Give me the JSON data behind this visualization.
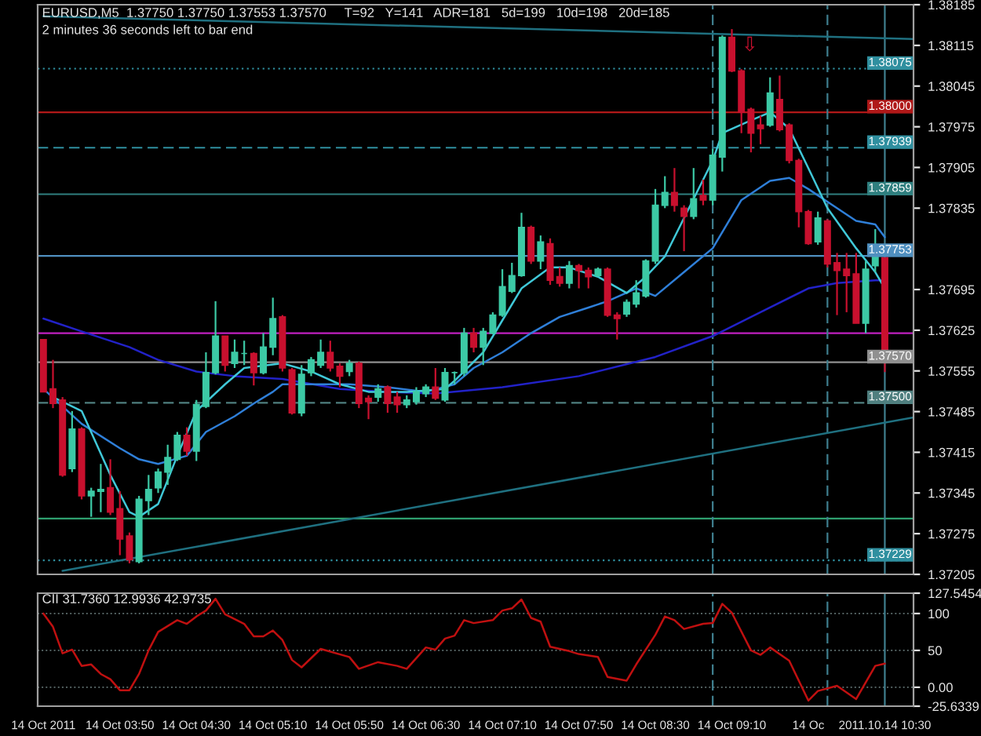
{
  "chart_data": [
    {
      "type": "candlestick",
      "title": "EURUSD,M5  1.37750 1.37750 1.37553 1.37570",
      "annotations": [
        "2 minutes 36 seconds left to bar end",
        "T=92   Y=141   ADR=181   5d=199   10d=198   20d=185",
        "⇩"
      ],
      "x": [
        "2011-10-14T03:10",
        "2011-10-14T03:15",
        "2011-10-14T03:20",
        "2011-10-14T03:25",
        "2011-10-14T03:30",
        "2011-10-14T03:35",
        "2011-10-14T03:40",
        "2011-10-14T03:45",
        "2011-10-14T03:50",
        "2011-10-14T03:55",
        "2011-10-14T04:00",
        "2011-10-14T04:05",
        "2011-10-14T04:10",
        "2011-10-14T04:15",
        "2011-10-14T04:20",
        "2011-10-14T04:25",
        "2011-10-14T04:30",
        "2011-10-14T04:35",
        "2011-10-14T04:40",
        "2011-10-14T04:45",
        "2011-10-14T04:50",
        "2011-10-14T04:55",
        "2011-10-14T05:00",
        "2011-10-14T05:05",
        "2011-10-14T05:10",
        "2011-10-14T05:15",
        "2011-10-14T05:20",
        "2011-10-14T05:25",
        "2011-10-14T05:30",
        "2011-10-14T05:35",
        "2011-10-14T05:40",
        "2011-10-14T05:45",
        "2011-10-14T05:50",
        "2011-10-14T05:55",
        "2011-10-14T06:00",
        "2011-10-14T06:05",
        "2011-10-14T06:10",
        "2011-10-14T06:15",
        "2011-10-14T06:20",
        "2011-10-14T06:25",
        "2011-10-14T06:30",
        "2011-10-14T06:35",
        "2011-10-14T06:40",
        "2011-10-14T06:45",
        "2011-10-14T06:50",
        "2011-10-14T06:55",
        "2011-10-14T07:00",
        "2011-10-14T07:05",
        "2011-10-14T07:10",
        "2011-10-14T07:15",
        "2011-10-14T07:20",
        "2011-10-14T07:25",
        "2011-10-14T07:30",
        "2011-10-14T07:35",
        "2011-10-14T07:40",
        "2011-10-14T07:45",
        "2011-10-14T07:50",
        "2011-10-14T07:55",
        "2011-10-14T08:00",
        "2011-10-14T08:05",
        "2011-10-14T08:10",
        "2011-10-14T08:15",
        "2011-10-14T08:20",
        "2011-10-14T08:25",
        "2011-10-14T08:30",
        "2011-10-14T08:35",
        "2011-10-14T08:40",
        "2011-10-14T08:45",
        "2011-10-14T08:50",
        "2011-10-14T08:55",
        "2011-10-14T09:00",
        "2011-10-14T09:05",
        "2011-10-14T09:10",
        "2011-10-14T09:15",
        "2011-10-14T09:20",
        "2011-10-14T09:25",
        "2011-10-14T09:30",
        "2011-10-14T09:35",
        "2011-10-14T09:40",
        "2011-10-14T09:45",
        "2011-10-14T09:50",
        "2011-10-14T09:55",
        "2011-10-14T10:00",
        "2011-10-14T10:05",
        "2011-10-14T10:10",
        "2011-10-14T10:15",
        "2011-10-14T10:20",
        "2011-10-14T10:25",
        "2011-10-14T10:30"
      ],
      "ohlc": [
        [
          1.37609,
          1.37609,
          1.37519,
          1.37519
        ],
        [
          1.37524,
          1.37574,
          1.37491,
          1.37499
        ],
        [
          1.37505,
          1.3751,
          1.37373,
          1.37376
        ],
        [
          1.37387,
          1.37486,
          1.37381,
          1.37455
        ],
        [
          1.37455,
          1.37458,
          1.37334,
          1.3734
        ],
        [
          1.3734,
          1.37354,
          1.37304,
          1.37348
        ],
        [
          1.37348,
          1.37395,
          1.37312,
          1.37351
        ],
        [
          1.37354,
          1.37403,
          1.37307,
          1.37312
        ],
        [
          1.37318,
          1.37348,
          1.37238,
          1.37266
        ],
        [
          1.37271,
          1.37277,
          1.37224,
          1.3723
        ],
        [
          1.37227,
          1.3734,
          1.37224,
          1.37334
        ],
        [
          1.37332,
          1.37376,
          1.37307,
          1.37351
        ],
        [
          1.37354,
          1.37387,
          1.37345,
          1.37381
        ],
        [
          1.37381,
          1.37428,
          1.37359,
          1.37406
        ],
        [
          1.37403,
          1.3745,
          1.374,
          1.37444
        ],
        [
          1.37444,
          1.37458,
          1.37409,
          1.37417
        ],
        [
          1.37417,
          1.37505,
          1.374,
          1.37497
        ],
        [
          1.37494,
          1.37587,
          1.37491,
          1.37552
        ],
        [
          1.37552,
          1.37675,
          1.37549,
          1.37615
        ],
        [
          1.37615,
          1.37615,
          1.37554,
          1.37565
        ],
        [
          1.37568,
          1.37609,
          1.3756,
          1.37587
        ],
        [
          1.37585,
          1.37607,
          1.37565,
          1.37585
        ],
        [
          1.37585,
          1.37587,
          1.3753,
          1.37552
        ],
        [
          1.37552,
          1.3762,
          1.37549,
          1.37596
        ],
        [
          1.37596,
          1.37681,
          1.37582,
          1.37645
        ],
        [
          1.37648,
          1.37651,
          1.37554,
          1.3756
        ],
        [
          1.37557,
          1.3756,
          1.3748,
          1.37483
        ],
        [
          1.37483,
          1.37565,
          1.37477,
          1.37549
        ],
        [
          1.37552,
          1.37579,
          1.37546,
          1.37574
        ],
        [
          1.37565,
          1.37609,
          1.3756,
          1.37587
        ],
        [
          1.37587,
          1.37607,
          1.37554,
          1.3756
        ],
        [
          1.37563,
          1.37568,
          1.37527,
          1.37546
        ],
        [
          1.37554,
          1.37574,
          1.37546,
          1.37568
        ],
        [
          1.37568,
          1.37571,
          1.37491,
          1.37499
        ],
        [
          1.37508,
          1.37513,
          1.37472,
          1.37502
        ],
        [
          1.3751,
          1.37532,
          1.37502,
          1.37524
        ],
        [
          1.37527,
          1.3753,
          1.37483,
          1.37499
        ],
        [
          1.3751,
          1.37519,
          1.37483,
          1.37497
        ],
        [
          1.37497,
          1.37513,
          1.37491,
          1.37505
        ],
        [
          1.37502,
          1.37527,
          1.37497,
          1.37519
        ],
        [
          1.37516,
          1.37532,
          1.3751,
          1.37527
        ],
        [
          1.37527,
          1.3756,
          1.37505,
          1.37508
        ],
        [
          1.37505,
          1.3756,
          1.37502,
          1.37552
        ],
        [
          1.37552,
          1.37554,
          1.37532,
          1.37552
        ],
        [
          1.37552,
          1.37629,
          1.37546,
          1.3762
        ],
        [
          1.3762,
          1.37629,
          1.37587,
          1.37596
        ],
        [
          1.37596,
          1.37629,
          1.37565,
          1.37623
        ],
        [
          1.3762,
          1.37656,
          1.37618,
          1.37651
        ],
        [
          1.37651,
          1.3773,
          1.37648,
          1.377
        ],
        [
          1.37692,
          1.37741,
          1.37689,
          1.37719
        ],
        [
          1.37719,
          1.37827,
          1.37717,
          1.37802
        ],
        [
          1.37802,
          1.37805,
          1.37739,
          1.37744
        ],
        [
          1.37744,
          1.37788,
          1.3773,
          1.37777
        ],
        [
          1.37774,
          1.37783,
          1.37703,
          1.37711
        ],
        [
          1.37717,
          1.37733,
          1.377,
          1.37706
        ],
        [
          1.37706,
          1.37744,
          1.37697,
          1.37736
        ],
        [
          1.37736,
          1.37739,
          1.37697,
          1.37728
        ],
        [
          1.37728,
          1.37733,
          1.37697,
          1.37717
        ],
        [
          1.37719,
          1.37733,
          1.37717,
          1.3773
        ],
        [
          1.3773,
          1.37733,
          1.37648,
          1.37651
        ],
        [
          1.37651,
          1.37656,
          1.37609,
          1.37645
        ],
        [
          1.37653,
          1.37678,
          1.37648,
          1.37673
        ],
        [
          1.3767,
          1.37711,
          1.37664,
          1.37689
        ],
        [
          1.37684,
          1.37747,
          1.37681,
          1.37744
        ],
        [
          1.37744,
          1.37868,
          1.37739,
          1.3784
        ],
        [
          1.3784,
          1.3789,
          1.37835,
          1.37862
        ],
        [
          1.37862,
          1.37904,
          1.37829,
          1.3784
        ],
        [
          1.37835,
          1.3784,
          1.37761,
          1.37821
        ],
        [
          1.37821,
          1.37904,
          1.37816,
          1.37851
        ],
        [
          1.37857,
          1.37884,
          1.3784,
          1.37849
        ],
        [
          1.37849,
          1.37937,
          1.3784,
          1.37926
        ],
        [
          1.37923,
          1.38132,
          1.37898,
          1.38129
        ],
        [
          1.38129,
          1.38143,
          1.38069,
          1.38071
        ],
        [
          1.38071,
          1.38074,
          1.37964,
          1.38
        ],
        [
          1.38005,
          1.38008,
          1.37931,
          1.37964
        ],
        [
          1.37978,
          1.37994,
          1.37945,
          1.37972
        ],
        [
          1.37978,
          1.3806,
          1.37975,
          1.38033
        ],
        [
          1.38022,
          1.38063,
          1.37967,
          1.3797
        ],
        [
          1.37978,
          1.37981,
          1.37912,
          1.37917
        ],
        [
          1.37917,
          1.3792,
          1.37802,
          1.37829
        ],
        [
          1.37829,
          1.37832,
          1.37772,
          1.37774
        ],
        [
          1.37777,
          1.37829,
          1.37772,
          1.37818
        ],
        [
          1.37813,
          1.37816,
          1.37733,
          1.37739
        ],
        [
          1.37741,
          1.37758,
          1.37651,
          1.37728
        ],
        [
          1.3773,
          1.37758,
          1.37656,
          1.37719
        ],
        [
          1.37722,
          1.37758,
          1.37637,
          1.37637
        ],
        [
          1.37637,
          1.37744,
          1.3762,
          1.3773
        ],
        [
          1.37736,
          1.37799,
          1.37725,
          1.37752
        ],
        [
          1.3775,
          1.3775,
          1.37553,
          1.3757
        ]
      ],
      "colors": [
        "#c8102e",
        "#c8102e",
        "#c8102e",
        "#3cc9a5",
        "#c8102e",
        "#3cc9a5",
        "#3cc9a5",
        "#c8102e",
        "#c8102e",
        "#c8102e",
        "#3cc9a5",
        "#3cc9a5",
        "#3cc9a5",
        "#3cc9a5",
        "#3cc9a5",
        "#c8102e",
        "#3cc9a5",
        "#3cc9a5",
        "#3cc9a5",
        "#c8102e",
        "#3cc9a5",
        "#3cc9a5",
        "#c8102e",
        "#3cc9a5",
        "#3cc9a5",
        "#c8102e",
        "#c8102e",
        "#3cc9a5",
        "#3cc9a5",
        "#3cc9a5",
        "#c8102e",
        "#c8102e",
        "#3cc9a5",
        "#c8102e",
        "#c8102e",
        "#3cc9a5",
        "#c8102e",
        "#c8102e",
        "#3cc9a5",
        "#3cc9a5",
        "#3cc9a5",
        "#c8102e",
        "#3cc9a5",
        "#3cc9a5",
        "#3cc9a5",
        "#c8102e",
        "#3cc9a5",
        "#3cc9a5",
        "#3cc9a5",
        "#3cc9a5",
        "#3cc9a5",
        "#c8102e",
        "#3cc9a5",
        "#c8102e",
        "#c8102e",
        "#3cc9a5",
        "#c8102e",
        "#c8102e",
        "#3cc9a5",
        "#c8102e",
        "#c8102e",
        "#3cc9a5",
        "#3cc9a5",
        "#3cc9a5",
        "#3cc9a5",
        "#3cc9a5",
        "#c8102e",
        "#c8102e",
        "#3cc9a5",
        "#c8102e",
        "#3cc9a5",
        "#3cc9a5",
        "#c8102e",
        "#c8102e",
        "#c8102e",
        "#c8102e",
        "#3cc9a5",
        "#c8102e",
        "#c8102e",
        "#c8102e",
        "#c8102e",
        "#3cc9a5",
        "#c8102e",
        "#c8102e",
        "#c8102e",
        "#c8102e",
        "#3cc9a5",
        "#3cc9a5",
        "#c8102e"
      ],
      "series": [
        {
          "type": "line",
          "color": "#2222c8",
          "x": [
            "2011-10-14T03:10",
            "2011-10-14T03:30",
            "2011-10-14T03:55",
            "2011-10-14T04:10",
            "2011-10-14T04:30",
            "2011-10-14T04:50",
            "2011-10-14T05:15",
            "2011-10-14T05:45",
            "2011-10-14T06:10",
            "2011-10-14T06:35",
            "2011-10-14T07:10",
            "2011-10-14T07:50",
            "2011-10-14T08:30",
            "2011-10-14T09:00",
            "2011-10-14T09:25",
            "2011-10-14T09:50",
            "2011-10-14T10:05",
            "2011-10-14T10:25",
            "2011-10-14T10:30"
          ],
          "values": [
            1.37645,
            1.37623,
            1.37596,
            1.37574,
            1.37554,
            1.37546,
            1.37541,
            1.37524,
            1.37519,
            1.37516,
            1.37527,
            1.37546,
            1.37579,
            1.37615,
            1.37656,
            1.37697,
            1.37706,
            1.37711,
            1.37711
          ]
        },
        {
          "type": "line",
          "color": "#2f7fd8",
          "x": [
            "2011-10-14T03:10",
            "2011-10-14T03:30",
            "2011-10-14T03:50",
            "2011-10-14T04:00",
            "2011-10-14T04:10",
            "2011-10-14T04:25",
            "2011-10-14T04:35",
            "2011-10-14T04:50",
            "2011-10-14T05:00",
            "2011-10-14T05:10",
            "2011-10-14T05:15",
            "2011-10-14T05:35",
            "2011-10-14T05:50",
            "2011-10-14T06:10",
            "2011-10-14T06:30",
            "2011-10-14T06:45",
            "2011-10-14T06:55",
            "2011-10-14T07:10",
            "2011-10-14T07:25",
            "2011-10-14T07:40",
            "2011-10-14T07:55",
            "2011-10-14T08:05",
            "2011-10-14T08:20",
            "2011-10-14T08:30",
            "2011-10-14T08:45",
            "2011-10-14T09:00",
            "2011-10-14T09:15",
            "2011-10-14T09:30",
            "2011-10-14T09:40",
            "2011-10-14T09:50",
            "2011-10-14T10:05",
            "2011-10-14T10:15",
            "2011-10-14T10:25",
            "2011-10-14T10:30"
          ],
          "values": [
            1.37524,
            1.37464,
            1.37422,
            1.37403,
            1.37395,
            1.37409,
            1.3745,
            1.37477,
            1.37499,
            1.37519,
            1.37532,
            1.37532,
            1.37532,
            1.37527,
            1.37519,
            1.37532,
            1.3756,
            1.37587,
            1.3762,
            1.37648,
            1.37664,
            1.37675,
            1.37697,
            1.37684,
            1.37725,
            1.37766,
            1.37849,
            1.37882,
            1.37887,
            1.37868,
            1.37835,
            1.37813,
            1.37807,
            1.37785
          ]
        },
        {
          "type": "line",
          "color": "#40c8d8",
          "x": [
            "2011-10-14T03:15",
            "2011-10-14T03:30",
            "2011-10-14T03:45",
            "2011-10-14T03:55",
            "2011-10-14T04:00",
            "2011-10-14T04:10",
            "2011-10-14T04:20",
            "2011-10-14T04:30",
            "2011-10-14T04:45",
            "2011-10-14T04:55",
            "2011-10-14T05:15",
            "2011-10-14T05:30",
            "2011-10-14T05:45",
            "2011-10-14T06:00",
            "2011-10-14T06:20",
            "2011-10-14T06:40",
            "2011-10-14T06:45",
            "2011-10-14T07:00",
            "2011-10-14T07:10",
            "2011-10-14T07:20",
            "2011-10-14T07:35",
            "2011-10-14T07:45",
            "2011-10-14T08:00",
            "2011-10-14T08:15",
            "2011-10-14T08:25",
            "2011-10-14T08:35",
            "2011-10-14T09:00",
            "2011-10-14T09:05",
            "2011-10-14T09:20",
            "2011-10-14T09:30",
            "2011-10-14T09:40",
            "2011-10-14T09:50",
            "2011-10-14T10:00",
            "2011-10-14T10:15",
            "2011-10-14T10:25",
            "2011-10-14T10:30"
          ],
          "values": [
            1.3751,
            1.37486,
            1.37376,
            1.37312,
            1.37304,
            1.37326,
            1.37409,
            1.37486,
            1.37532,
            1.3756,
            1.37568,
            1.37554,
            1.37532,
            1.37519,
            1.37519,
            1.37524,
            1.37538,
            1.37587,
            1.37642,
            1.37697,
            1.37733,
            1.37733,
            1.37717,
            1.37689,
            1.37717,
            1.37752,
            1.37917,
            1.37964,
            1.37986,
            1.38,
            1.37972,
            1.37904,
            1.37835,
            1.37766,
            1.37725,
            1.37697
          ]
        },
        {
          "type": "line",
          "color": "#1f7080",
          "x": [
            "2011-10-14T03:10",
            "2011-10-14T10:45"
          ],
          "values": [
            1.38165,
            1.38126
          ]
        },
        {
          "type": "line",
          "color": "#1f7080",
          "x": [
            "2011-10-14T03:20",
            "2011-10-14T10:45"
          ],
          "values": [
            1.37211,
            1.37475
          ]
        }
      ],
      "xlim": [
        "2011-10-14T03:07",
        "2011-10-14T10:45"
      ],
      "ylim": [
        1.37205,
        1.38185
      ],
      "yticks": [
        1.38185,
        1.38115,
        1.38045,
        1.37975,
        1.37905,
        1.37835,
        1.37695,
        1.37625,
        1.37555,
        1.37485,
        1.37415,
        1.37345,
        1.37275,
        1.37205
      ],
      "ref_lines": [
        {
          "axis": "y",
          "value": 1.38075,
          "label": "1.38075",
          "color": "#2f8f9f",
          "line_style": "dotted"
        },
        {
          "axis": "y",
          "value": 1.38,
          "label": "1.38000",
          "color": "#b01818",
          "line_style": "solid"
        },
        {
          "axis": "y",
          "value": 1.37939,
          "label": "1.37939",
          "color": "#2f8f9f",
          "line_style": "dashed"
        },
        {
          "axis": "y",
          "value": 1.37859,
          "label": "1.37859",
          "color": "#2f7f7f",
          "line_style": "solid"
        },
        {
          "axis": "y",
          "value": 1.37753,
          "label": "1.37753",
          "color": "#4f8fbf",
          "line_style": "solid"
        },
        {
          "axis": "y",
          "value": 1.3762,
          "color": "#c020c0",
          "line_style": "solid"
        },
        {
          "axis": "y",
          "value": 1.3757,
          "label": "1.37570",
          "color": "#909090",
          "line_style": "solid"
        },
        {
          "axis": "y",
          "value": 1.375,
          "label": "1.37500",
          "color": "#4f7f7f",
          "line_style": "dashed"
        },
        {
          "axis": "y",
          "value": 1.37301,
          "color": "#2f9f6f",
          "line_style": "solid"
        },
        {
          "axis": "y",
          "value": 1.37229,
          "label": "1.37229",
          "color": "#2f8f9f",
          "line_style": "dotted"
        },
        {
          "axis": "x",
          "value": "2011-10-14T09:00",
          "color": "#3f7f8f",
          "line_style": "dashed"
        },
        {
          "axis": "x",
          "value": "2011-10-14T10:00",
          "color": "#3f7f8f",
          "line_style": "dashed"
        },
        {
          "axis": "x",
          "value": "2011-10-14T10:30",
          "color": "#3f7f8f",
          "line_style": "solid"
        }
      ],
      "tick_labels": "y"
    },
    {
      "type": "line",
      "title": "CII 31.7360 12.9936 42.9735",
      "series": [
        {
          "color": "#c01010",
          "x": [
            "2011-10-14T03:10",
            "2011-10-14T03:15",
            "2011-10-14T03:20",
            "2011-10-14T03:25",
            "2011-10-14T03:30",
            "2011-10-14T03:35",
            "2011-10-14T03:40",
            "2011-10-14T03:45",
            "2011-10-14T03:50",
            "2011-10-14T03:55",
            "2011-10-14T04:00",
            "2011-10-14T04:05",
            "2011-10-14T04:10",
            "2011-10-14T04:20",
            "2011-10-14T04:25",
            "2011-10-14T04:30",
            "2011-10-14T04:35",
            "2011-10-14T04:40",
            "2011-10-14T04:45",
            "2011-10-14T04:55",
            "2011-10-14T05:00",
            "2011-10-14T05:05",
            "2011-10-14T05:10",
            "2011-10-14T05:15",
            "2011-10-14T05:20",
            "2011-10-14T05:25",
            "2011-10-14T05:35",
            "2011-10-14T05:50",
            "2011-10-14T05:55",
            "2011-10-14T06:05",
            "2011-10-14T06:15",
            "2011-10-14T06:20",
            "2011-10-14T06:30",
            "2011-10-14T06:35",
            "2011-10-14T06:40",
            "2011-10-14T06:45",
            "2011-10-14T06:50",
            "2011-10-14T06:55",
            "2011-10-14T07:05",
            "2011-10-14T07:10",
            "2011-10-14T07:15",
            "2011-10-14T07:20",
            "2011-10-14T07:25",
            "2011-10-14T07:30",
            "2011-10-14T07:35",
            "2011-10-14T07:45",
            "2011-10-14T07:50",
            "2011-10-14T08:00",
            "2011-10-14T08:05",
            "2011-10-14T08:15",
            "2011-10-14T08:20",
            "2011-10-14T08:30",
            "2011-10-14T08:35",
            "2011-10-14T08:40",
            "2011-10-14T08:45",
            "2011-10-14T08:55",
            "2011-10-14T09:00",
            "2011-10-14T09:05",
            "2011-10-14T09:10",
            "2011-10-14T09:20",
            "2011-10-14T09:25",
            "2011-10-14T09:30",
            "2011-10-14T09:40",
            "2011-10-14T09:50",
            "2011-10-14T09:55",
            "2011-10-14T10:05",
            "2011-10-14T10:10",
            "2011-10-14T10:15",
            "2011-10-14T10:25",
            "2011-10-14T10:30"
          ],
          "values": [
            100,
            82,
            46,
            51,
            29,
            31,
            18,
            11,
            -4,
            -4,
            18,
            50,
            75,
            91,
            86,
            96,
            104,
            120,
            99,
            86,
            69,
            69,
            77,
            64,
            37,
            27,
            52,
            41,
            25,
            34,
            29,
            25,
            54,
            51,
            66,
            70,
            91,
            87,
            91,
            104,
            107,
            119,
            94,
            89,
            55,
            49,
            45,
            41,
            14,
            9,
            31,
            71,
            96,
            91,
            79,
            86,
            87,
            113,
            101,
            50,
            44,
            54,
            36,
            -18,
            -5,
            2,
            -7,
            -16,
            29,
            32
          ]
        }
      ],
      "xlim": [
        "2011-10-14T03:07",
        "2011-10-14T10:45"
      ],
      "xticks": [
        {
          "value": "2011-10-14T03:10",
          "label": "14 Oct 2011"
        },
        {
          "value": "2011-10-14T03:50",
          "label": "14 Oct 03:50"
        },
        {
          "value": "2011-10-14T04:30",
          "label": "14 Oct 04:30"
        },
        {
          "value": "2011-10-14T05:10",
          "label": "14 Oct 05:10"
        },
        {
          "value": "2011-10-14T05:50",
          "label": "14 Oct 05:50"
        },
        {
          "value": "2011-10-14T06:30",
          "label": "14 Oct 06:30"
        },
        {
          "value": "2011-10-14T07:10",
          "label": "14 Oct 07:10"
        },
        {
          "value": "2011-10-14T07:50",
          "label": "14 Oct 07:50"
        },
        {
          "value": "2011-10-14T08:30",
          "label": "14 Oct 08:30"
        },
        {
          "value": "2011-10-14T09:10",
          "label": "14 Oct 09:10"
        },
        {
          "value": "2011-10-14T09:50",
          "label": "14 Oc"
        },
        {
          "value": "2011-10-14T10:30",
          "label": "2011.10.14 10:30"
        }
      ],
      "ylim": [
        -25.6339,
        127.5454
      ],
      "yticks": [
        127.5454,
        100,
        50,
        {
          "value": 0,
          "label": "0.00"
        },
        -25.6339
      ],
      "grid": "y",
      "ref_lines": [
        {
          "axis": "x",
          "value": "2011-10-14T09:00",
          "color": "#3f7f8f",
          "line_style": "dashed"
        },
        {
          "axis": "x",
          "value": "2011-10-14T10:00",
          "color": "#3f7f8f",
          "line_style": "dashed"
        },
        {
          "axis": "x",
          "value": "2011-10-14T10:30",
          "color": "#3f7f8f",
          "line_style": "solid"
        }
      ]
    }
  ]
}
